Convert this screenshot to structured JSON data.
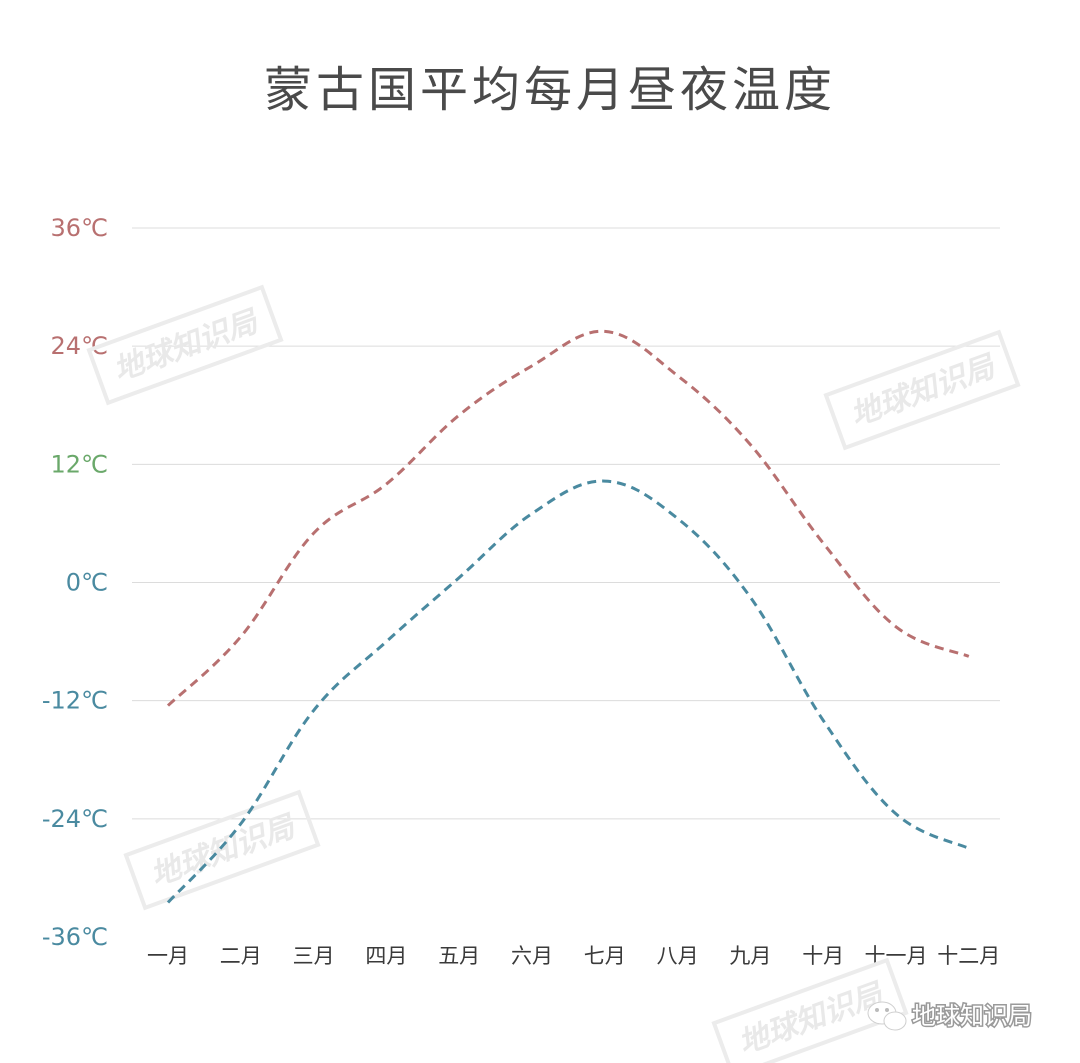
{
  "chart_data": {
    "type": "line",
    "title": "蒙古国平均每月昼夜温度",
    "categories": [
      "一月",
      "二月",
      "三月",
      "四月",
      "五月",
      "六月",
      "七月",
      "八月",
      "九月",
      "十月",
      "十一月",
      "十二月"
    ],
    "y_ticks": [
      {
        "label": "36℃",
        "value": 36,
        "color": "#b87070"
      },
      {
        "label": "24℃",
        "value": 24,
        "color": "#b87070"
      },
      {
        "label": "12℃",
        "value": 12,
        "color": "#6aa86a"
      },
      {
        "label": "0℃",
        "value": 0,
        "color": "#4a8aa0"
      },
      {
        "label": "-12℃",
        "value": -12,
        "color": "#4a8aa0"
      },
      {
        "label": "-24℃",
        "value": -24,
        "color": "#4a8aa0"
      },
      {
        "label": "-36℃",
        "value": -36,
        "color": "#4a8aa0"
      }
    ],
    "ylim": [
      -36,
      36
    ],
    "grid": true,
    "series": [
      {
        "values": [
          -12.5,
          -5.5,
          5,
          10,
          17,
          22,
          25.5,
          21,
          14,
          4,
          -4.5,
          -7.5
        ],
        "color": "#b87070",
        "dash": "dashed"
      },
      {
        "values": [
          -32.5,
          -24.5,
          -13,
          -6,
          0.5,
          7,
          10.3,
          6.5,
          -1.5,
          -14,
          -23.5,
          -27
        ],
        "color": "#4a8aa0",
        "dash": "dashed"
      }
    ]
  },
  "watermark": {
    "text": "地球知识局"
  },
  "brand": {
    "text": "地球知识局",
    "icon": "wechat-icon"
  }
}
